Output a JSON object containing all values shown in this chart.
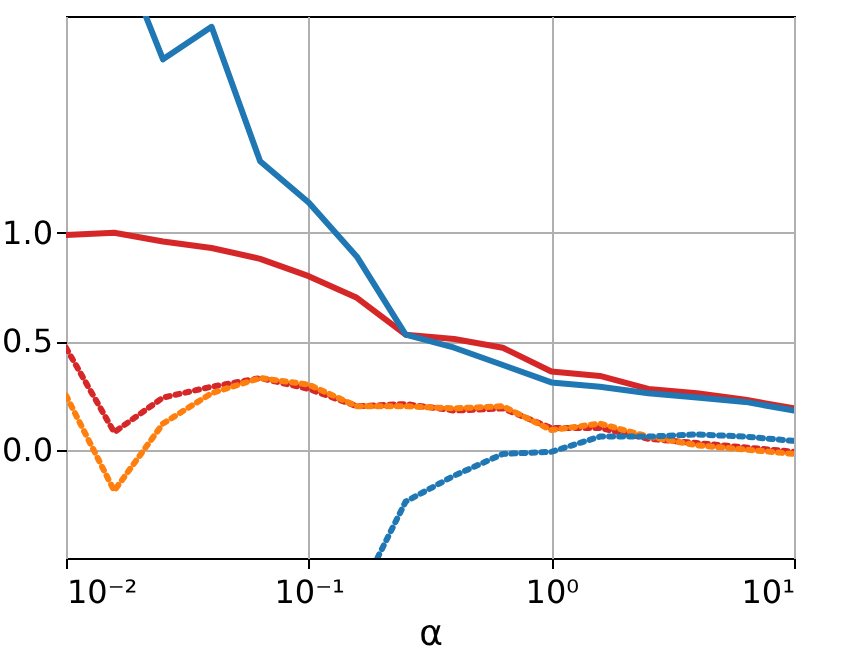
{
  "chart_data": {
    "type": "line",
    "xlabel": "α",
    "log": "x",
    "grid": true,
    "legend": false,
    "x": [
      0.01,
      0.0158,
      0.0251,
      0.0398,
      0.0631,
      0.1,
      0.158,
      0.251,
      0.398,
      0.631,
      1,
      1.585,
      2.51,
      3.98,
      6.31,
      10
    ],
    "xlim": [
      0.01,
      10
    ],
    "ylim": [
      -0.5,
      2.0
    ],
    "xticks": [
      {
        "value": 0.01,
        "label": "10⁻²"
      },
      {
        "value": 0.1,
        "label": "10⁻¹"
      },
      {
        "value": 1,
        "label": "10⁰"
      },
      {
        "value": 10,
        "label": "10¹"
      }
    ],
    "yticks": [
      {
        "value": 0,
        "label": "0.0"
      },
      0.5,
      {
        "value": 1,
        "label": "1.0"
      }
    ],
    "series": [
      {
        "color": "#d62728",
        "line_style": "solid",
        "values": [
          0.99,
          1.0,
          0.96,
          0.93,
          0.88,
          0.8,
          0.7,
          0.53,
          0.51,
          0.47,
          0.36,
          0.34,
          0.28,
          0.26,
          0.23,
          0.19
        ]
      },
      {
        "color": "#1f77b4",
        "line_style": "solid",
        "x": [
          0.0213,
          0.0251,
          0.0398,
          0.0631,
          0.1,
          0.158,
          0.251,
          0.398,
          0.631,
          1,
          1.585,
          2.51,
          3.98,
          6.31,
          10
        ],
        "values": [
          2.0,
          1.8,
          1.95,
          1.33,
          1.14,
          0.89,
          0.53,
          0.47,
          0.39,
          0.31,
          0.29,
          0.26,
          0.24,
          0.22,
          0.18
        ]
      },
      {
        "color": "#d62728",
        "line_style": "dotted",
        "values": [
          0.47,
          0.08,
          0.24,
          0.29,
          0.33,
          0.28,
          0.2,
          0.21,
          0.18,
          0.19,
          0.1,
          0.1,
          0.05,
          0.03,
          0.01,
          -0.01
        ]
      },
      {
        "color": "#ff7f0e",
        "line_style": "dotted",
        "values": [
          0.25,
          -0.19,
          0.12,
          0.26,
          0.33,
          0.3,
          0.2,
          0.2,
          0.19,
          0.2,
          0.09,
          0.12,
          0.06,
          0.02,
          0.0,
          -0.02
        ]
      },
      {
        "color": "#1f77b4",
        "line_style": "dotted",
        "x": [
          0.192,
          0.251,
          0.398,
          0.631,
          1,
          1.585,
          2.51,
          3.98,
          6.31,
          10
        ],
        "values": [
          -0.5,
          -0.24,
          -0.12,
          -0.02,
          -0.01,
          0.06,
          0.06,
          0.07,
          0.06,
          0.04
        ]
      }
    ]
  }
}
